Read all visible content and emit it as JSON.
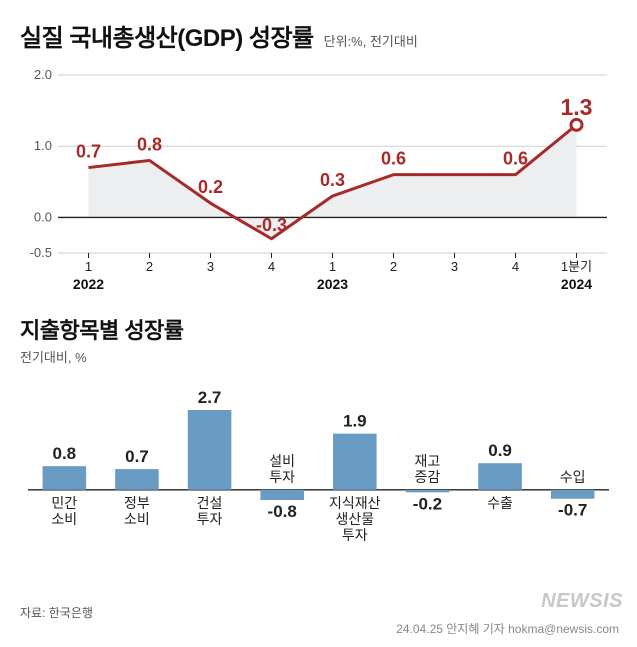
{
  "chart1": {
    "title": "실질 국내총생산(GDP) 성장률",
    "unit": "단위:%, 전기대비",
    "type": "line",
    "ylim": [
      -0.5,
      2.0
    ],
    "yticks": [
      -0.5,
      0.0,
      1.0,
      2.0
    ],
    "ytick_labels": [
      "-0.5",
      "0.0",
      "1.0",
      "2.0"
    ],
    "x_labels": [
      "1",
      "2",
      "3",
      "4",
      "1",
      "2",
      "3",
      "4",
      "1분기"
    ],
    "year_labels": [
      {
        "text": "2022",
        "under_index": 0
      },
      {
        "text": "2023",
        "under_index": 4
      },
      {
        "text": "2024",
        "under_index": 8
      }
    ],
    "values": [
      0.7,
      0.8,
      0.2,
      -0.3,
      0.3,
      0.6,
      0.6,
      0.6,
      1.3
    ],
    "value_labels": [
      "0.7",
      "0.8",
      "0.2",
      "-0.3",
      "0.3",
      "0.6",
      "",
      "0.6",
      "1.3"
    ],
    "line_color": "#a72a2a",
    "line_width": 3,
    "area_fill": "#eceef0",
    "grid_color": "#cfcfcf",
    "axis_color": "#222222",
    "background": "#ffffff",
    "last_marker_fill": "#ffffff",
    "last_marker_stroke": "#a72a2a",
    "label_fontsize": 18,
    "last_label_fontsize": 23
  },
  "chart2": {
    "title": "지출항목별 성장률",
    "unit": "전기대비, %",
    "type": "bar",
    "categories": [
      "민간\n소비",
      "정부\n소비",
      "건설\n투자",
      "설비\n투자",
      "지식재산\n생산물\n투자",
      "재고\n증감",
      "수출",
      "수입"
    ],
    "values": [
      0.8,
      0.7,
      2.7,
      -0.8,
      1.9,
      -0.2,
      0.9,
      -0.7
    ],
    "value_labels": [
      "0.8",
      "0.7",
      "2.7",
      "-0.8",
      "1.9",
      "-0.2",
      "0.9",
      "-0.7"
    ],
    "bar_color": "#6a9bc3",
    "axis_color": "#222222",
    "bar_width": 0.6,
    "max_abs": 2.7,
    "label_fontsize": 17,
    "cat_fontsize": 14
  },
  "source": "자료: 한국은행",
  "watermark": "NEWSIS",
  "credit": "24.04.25  안지혜 기자 hokma@newsis.com"
}
